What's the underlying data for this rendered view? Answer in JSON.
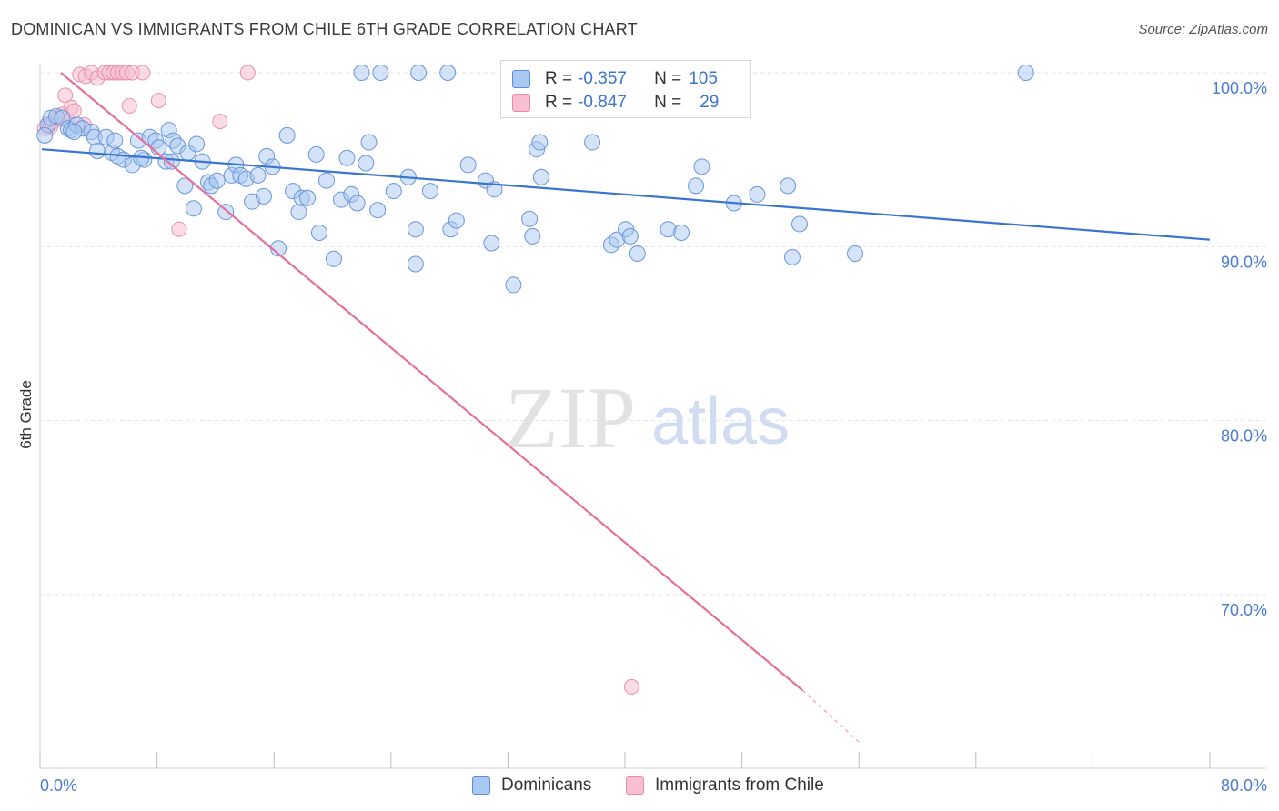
{
  "header": {
    "title": "DOMINICAN VS IMMIGRANTS FROM CHILE 6TH GRADE CORRELATION CHART",
    "source": "Source: ZipAtlas.com"
  },
  "legend": {
    "r_label": "R =",
    "n_label": "N =",
    "rows": [
      {
        "r": "-0.357",
        "n": "105",
        "color": "#a9c8f2",
        "border": "#5b8ed6"
      },
      {
        "r": "-0.847",
        "n": "29",
        "color": "#f7bfd0",
        "border": "#e58aa8"
      }
    ]
  },
  "bottom_legend": {
    "series_1": "Dominicans",
    "series_2": "Immigrants from Chile"
  },
  "watermark": {
    "part1": "ZIP",
    "part2": "atlas"
  },
  "colors": {
    "blue": "#3a74d0",
    "blue_fill": "#a9c8f2",
    "pink": "#e56f9a",
    "pink_fill": "#f7bfd0"
  },
  "chart_data": {
    "type": "scatter",
    "xlabel": "",
    "ylabel": "6th Grade",
    "xlim": [
      0,
      80
    ],
    "ylim": [
      60.5,
      101.5
    ],
    "x_tick_labels": [
      "0.0%",
      "80.0%"
    ],
    "y_ticks": [
      70,
      80,
      90,
      100
    ],
    "y_tick_labels": [
      "70.0%",
      "80.0%",
      "90.0%",
      "100.0%"
    ],
    "grid": true,
    "series": [
      {
        "name": "Dominicans",
        "trend": {
          "x": [
            0,
            80
          ],
          "y": [
            95.6,
            90.4
          ]
        },
        "points": [
          [
            0.4,
            97.0
          ],
          [
            0.6,
            97.4
          ],
          [
            1.0,
            97.5
          ],
          [
            1.4,
            97.4
          ],
          [
            1.8,
            96.8
          ],
          [
            2.0,
            96.7
          ],
          [
            2.4,
            97.0
          ],
          [
            2.8,
            96.8
          ],
          [
            3.4,
            96.6
          ],
          [
            3.6,
            96.3
          ],
          [
            3.8,
            95.5
          ],
          [
            4.4,
            96.3
          ],
          [
            4.8,
            95.4
          ],
          [
            5.2,
            95.2
          ],
          [
            5.6,
            95.0
          ],
          [
            6.2,
            94.7
          ],
          [
            6.6,
            96.1
          ],
          [
            7.0,
            95.0
          ],
          [
            7.4,
            96.3
          ],
          [
            7.8,
            96.1
          ],
          [
            8.0,
            95.7
          ],
          [
            8.5,
            94.9
          ],
          [
            8.7,
            96.7
          ],
          [
            9.0,
            96.1
          ],
          [
            9.3,
            95.8
          ],
          [
            9.8,
            93.5
          ],
          [
            10.0,
            95.4
          ],
          [
            10.4,
            92.2
          ],
          [
            10.6,
            95.9
          ],
          [
            11.0,
            94.9
          ],
          [
            11.4,
            93.7
          ],
          [
            11.6,
            93.5
          ],
          [
            12.0,
            93.8
          ],
          [
            12.6,
            92.0
          ],
          [
            13.0,
            94.1
          ],
          [
            13.3,
            94.7
          ],
          [
            13.6,
            94.1
          ],
          [
            14.0,
            93.9
          ],
          [
            14.4,
            92.6
          ],
          [
            14.8,
            94.1
          ],
          [
            15.2,
            92.9
          ],
          [
            15.4,
            95.2
          ],
          [
            15.8,
            94.6
          ],
          [
            16.2,
            89.9
          ],
          [
            16.8,
            96.4
          ],
          [
            17.2,
            93.2
          ],
          [
            17.6,
            92.0
          ],
          [
            17.8,
            92.8
          ],
          [
            18.2,
            92.8
          ],
          [
            18.8,
            95.3
          ],
          [
            19.0,
            90.8
          ],
          [
            19.5,
            93.8
          ],
          [
            20.0,
            89.3
          ],
          [
            20.5,
            92.7
          ],
          [
            20.9,
            95.1
          ],
          [
            21.2,
            93.0
          ],
          [
            21.6,
            92.5
          ],
          [
            21.9,
            100.0
          ],
          [
            22.2,
            94.8
          ],
          [
            22.4,
            96.0
          ],
          [
            23.0,
            92.1
          ],
          [
            23.2,
            100.0
          ],
          [
            24.1,
            93.2
          ],
          [
            25.1,
            94.0
          ],
          [
            25.6,
            91.0
          ],
          [
            25.6,
            89.0
          ],
          [
            25.8,
            100.0
          ],
          [
            26.6,
            93.2
          ],
          [
            27.8,
            100.0
          ],
          [
            28.0,
            91.0
          ],
          [
            28.4,
            91.5
          ],
          [
            29.2,
            94.7
          ],
          [
            30.4,
            93.8
          ],
          [
            30.8,
            90.2
          ],
          [
            31.0,
            93.3
          ],
          [
            32.3,
            87.8
          ],
          [
            32.6,
            100.0
          ],
          [
            33.4,
            91.6
          ],
          [
            33.6,
            90.6
          ],
          [
            33.9,
            95.6
          ],
          [
            34.1,
            96.0
          ],
          [
            34.2,
            94.0
          ],
          [
            37.7,
            96.0
          ],
          [
            39.0,
            90.1
          ],
          [
            39.4,
            90.4
          ],
          [
            40.0,
            91.0
          ],
          [
            40.3,
            90.6
          ],
          [
            40.8,
            89.6
          ],
          [
            42.9,
            91.0
          ],
          [
            43.8,
            90.8
          ],
          [
            43.9,
            100.0
          ],
          [
            44.8,
            93.5
          ],
          [
            45.2,
            94.6
          ],
          [
            47.4,
            92.5
          ],
          [
            49.0,
            93.0
          ],
          [
            51.1,
            93.5
          ],
          [
            51.4,
            89.4
          ],
          [
            51.9,
            91.3
          ],
          [
            55.7,
            89.6
          ],
          [
            67.4,
            100.0
          ],
          [
            0.2,
            96.4
          ],
          [
            2.2,
            96.6
          ],
          [
            5.0,
            96.1
          ],
          [
            6.8,
            95.1
          ],
          [
            8.9,
            94.9
          ]
        ]
      },
      {
        "name": "Immigrants from Chile",
        "trend": {
          "x": [
            1.3,
            52.1
          ],
          "y": [
            100.0,
            64.5
          ]
        },
        "trend_dashed": {
          "x": [
            52.1,
            56.0
          ],
          "y": [
            64.5,
            61.5
          ]
        },
        "points": [
          [
            0.2,
            96.8
          ],
          [
            0.5,
            97.0
          ],
          [
            0.8,
            97.2
          ],
          [
            1.1,
            97.4
          ],
          [
            1.4,
            97.6
          ],
          [
            1.6,
            98.7
          ],
          [
            1.8,
            97.2
          ],
          [
            2.0,
            98.0
          ],
          [
            2.2,
            97.8
          ],
          [
            2.6,
            99.9
          ],
          [
            2.9,
            97.0
          ],
          [
            3.0,
            99.8
          ],
          [
            3.4,
            100.0
          ],
          [
            3.8,
            99.7
          ],
          [
            4.3,
            100.0
          ],
          [
            4.6,
            100.0
          ],
          [
            4.9,
            100.0
          ],
          [
            5.2,
            100.0
          ],
          [
            5.5,
            100.0
          ],
          [
            5.8,
            100.0
          ],
          [
            6.2,
            100.0
          ],
          [
            6.0,
            98.1
          ],
          [
            6.9,
            100.0
          ],
          [
            8.0,
            98.4
          ],
          [
            9.4,
            91.0
          ],
          [
            12.2,
            97.2
          ],
          [
            14.1,
            100.0
          ],
          [
            40.4,
            64.7
          ],
          [
            0.6,
            96.9
          ]
        ]
      }
    ]
  }
}
